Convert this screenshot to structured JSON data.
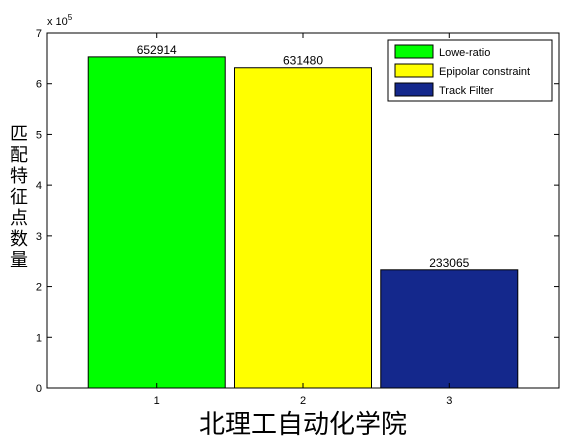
{
  "chart_data": {
    "type": "bar",
    "categories": [
      "1",
      "2",
      "3"
    ],
    "values": [
      652914,
      631480,
      233065
    ],
    "data_labels": [
      "652914",
      "631480",
      "233065"
    ],
    "colors": [
      "#00ff00",
      "#ffff00",
      "#14288c"
    ],
    "legend": {
      "placement": "top-right",
      "entries": [
        "Lowe-ratio",
        "Epipolar constraint",
        "Track Filter"
      ]
    },
    "xlabel": "北理工自动化学院",
    "ylabel": "匹配特征点数量",
    "ylim": [
      0,
      700000
    ],
    "yticks": [
      0,
      1,
      2,
      3,
      4,
      5,
      6,
      7
    ],
    "y_exponent_prefix": "x 10",
    "y_exponent_power": "5",
    "grid": false
  }
}
